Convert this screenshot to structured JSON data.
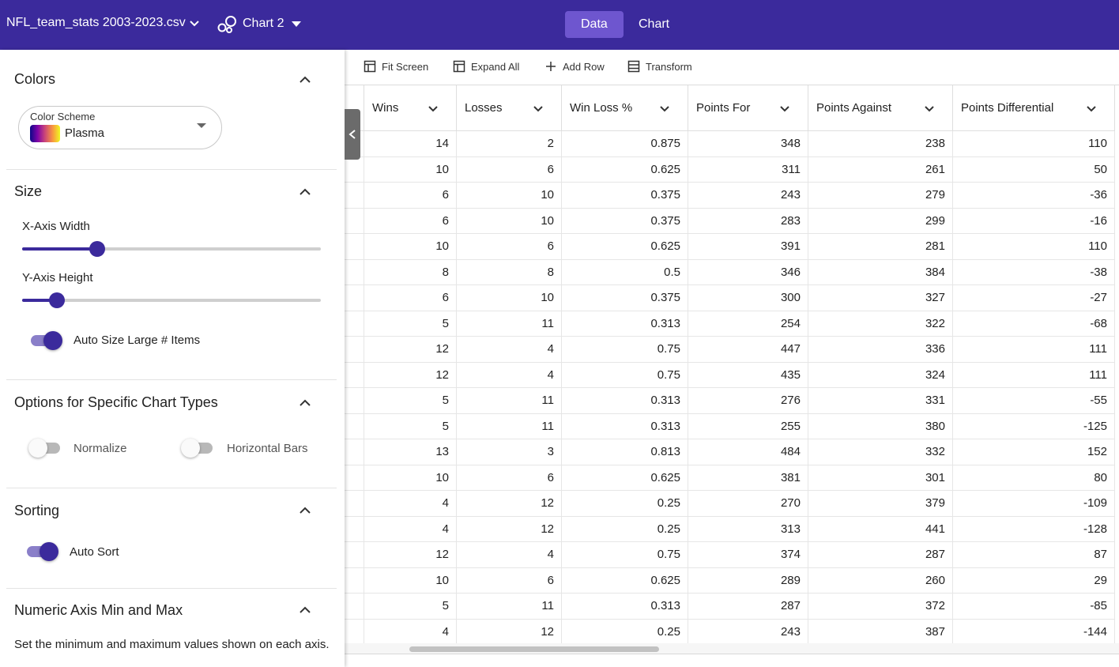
{
  "header": {
    "file_name": "NFL_team_stats 2003-2023.csv",
    "chart_name": "Chart 2",
    "tabs": [
      {
        "label": "Data",
        "active": true
      },
      {
        "label": "Chart",
        "active": false
      }
    ]
  },
  "sidebar": {
    "colors": {
      "title": "Colors",
      "scheme_label": "Color Scheme",
      "scheme_value": "Plasma"
    },
    "size": {
      "title": "Size",
      "x_axis_label": "X-Axis Width",
      "x_axis_value": 0.25,
      "y_axis_label": "Y-Axis Height",
      "y_axis_value": 0.116,
      "auto_size_label": "Auto Size Large # Items",
      "auto_size_on": true
    },
    "options": {
      "title": "Options for Specific Chart Types",
      "normalize_label": "Normalize",
      "normalize_on": false,
      "horizontal_label": "Horizontal Bars",
      "horizontal_on": false
    },
    "sorting": {
      "title": "Sorting",
      "auto_sort_label": "Auto Sort",
      "auto_sort_on": true
    },
    "numeric_axis": {
      "title": "Numeric Axis Min and Max",
      "description": "Set the minimum and maximum values shown on each axis."
    }
  },
  "toolbar": {
    "fit_screen": "Fit Screen",
    "expand_all": "Expand All",
    "add_row": "Add Row",
    "transform": "Transform"
  },
  "table": {
    "columns": [
      "Wins",
      "Losses",
      "Win Loss %",
      "Points For",
      "Points Against",
      "Points Differential"
    ],
    "rows": [
      [
        "14",
        "2",
        "0.875",
        "348",
        "238",
        "110"
      ],
      [
        "10",
        "6",
        "0.625",
        "311",
        "261",
        "50"
      ],
      [
        "6",
        "10",
        "0.375",
        "243",
        "279",
        "-36"
      ],
      [
        "6",
        "10",
        "0.375",
        "283",
        "299",
        "-16"
      ],
      [
        "10",
        "6",
        "0.625",
        "391",
        "281",
        "110"
      ],
      [
        "8",
        "8",
        "0.5",
        "346",
        "384",
        "-38"
      ],
      [
        "6",
        "10",
        "0.375",
        "300",
        "327",
        "-27"
      ],
      [
        "5",
        "11",
        "0.313",
        "254",
        "322",
        "-68"
      ],
      [
        "12",
        "4",
        "0.75",
        "447",
        "336",
        "111"
      ],
      [
        "12",
        "4",
        "0.75",
        "435",
        "324",
        "111"
      ],
      [
        "5",
        "11",
        "0.313",
        "276",
        "331",
        "-55"
      ],
      [
        "5",
        "11",
        "0.313",
        "255",
        "380",
        "-125"
      ],
      [
        "13",
        "3",
        "0.813",
        "484",
        "332",
        "152"
      ],
      [
        "10",
        "6",
        "0.625",
        "381",
        "301",
        "80"
      ],
      [
        "4",
        "12",
        "0.25",
        "270",
        "379",
        "-109"
      ],
      [
        "4",
        "12",
        "0.25",
        "313",
        "441",
        "-128"
      ],
      [
        "12",
        "4",
        "0.75",
        "374",
        "287",
        "87"
      ],
      [
        "10",
        "6",
        "0.625",
        "289",
        "260",
        "29"
      ],
      [
        "5",
        "11",
        "0.313",
        "287",
        "372",
        "-85"
      ],
      [
        "4",
        "12",
        "0.25",
        "243",
        "387",
        "-144"
      ]
    ]
  },
  "colors": {
    "primary": "#3b2a9c",
    "active_tab": "#6e56cf"
  }
}
